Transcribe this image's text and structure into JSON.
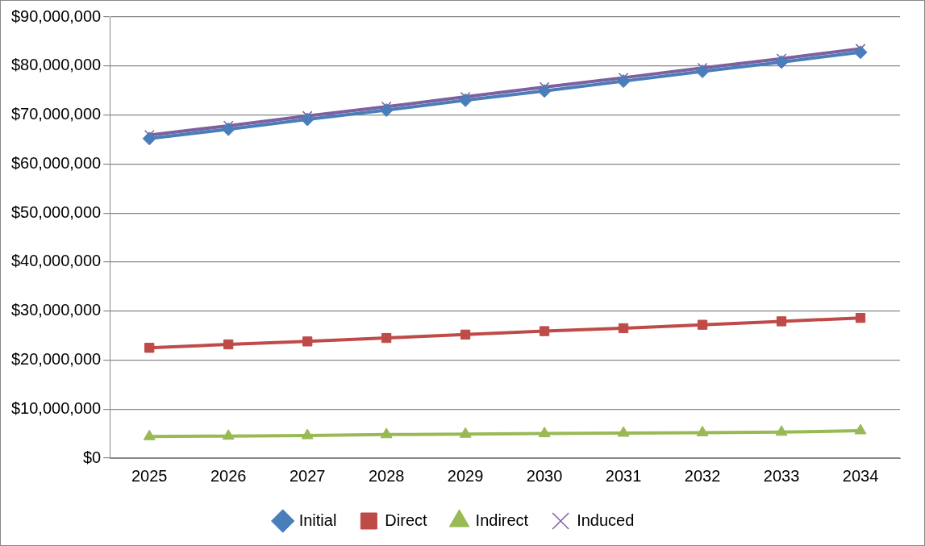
{
  "chart_data": {
    "type": "line",
    "categories": [
      "2025",
      "2026",
      "2027",
      "2028",
      "2029",
      "2030",
      "2031",
      "2032",
      "2033",
      "2034"
    ],
    "series": [
      {
        "name": "Initial",
        "color": "#4a7ebb",
        "marker": "diamond",
        "values": [
          65200000,
          67100000,
          69100000,
          71000000,
          73000000,
          74900000,
          76900000,
          78900000,
          80800000,
          82800000
        ]
      },
      {
        "name": "Direct",
        "color": "#be4b48",
        "marker": "square",
        "values": [
          22500000,
          23200000,
          23800000,
          24500000,
          25200000,
          25900000,
          26500000,
          27200000,
          27900000,
          28600000
        ]
      },
      {
        "name": "Indirect",
        "color": "#98b954",
        "marker": "triangle",
        "values": [
          4400000,
          4500000,
          4600000,
          4800000,
          4900000,
          5000000,
          5100000,
          5200000,
          5300000,
          5600000
        ]
      },
      {
        "name": "Induced",
        "color": "#7d60a0",
        "marker": "cross",
        "values": [
          65900000,
          67800000,
          69800000,
          71700000,
          73700000,
          75700000,
          77600000,
          79600000,
          81500000,
          83500000
        ]
      }
    ],
    "ylim": [
      0,
      90000000
    ],
    "yticks": [
      {
        "value": 0,
        "label": "$0"
      },
      {
        "value": 10000000,
        "label": "$10,000,000"
      },
      {
        "value": 20000000,
        "label": "$20,000,000"
      },
      {
        "value": 30000000,
        "label": "$30,000,000"
      },
      {
        "value": 40000000,
        "label": "$40,000,000"
      },
      {
        "value": 50000000,
        "label": "$50,000,000"
      },
      {
        "value": 60000000,
        "label": "$60,000,000"
      },
      {
        "value": 70000000,
        "label": "$70,000,000"
      },
      {
        "value": 80000000,
        "label": "$80,000,000"
      },
      {
        "value": 90000000,
        "label": "$90,000,000"
      }
    ],
    "grid": "y",
    "legend": "bottom",
    "line_style": "solid"
  }
}
